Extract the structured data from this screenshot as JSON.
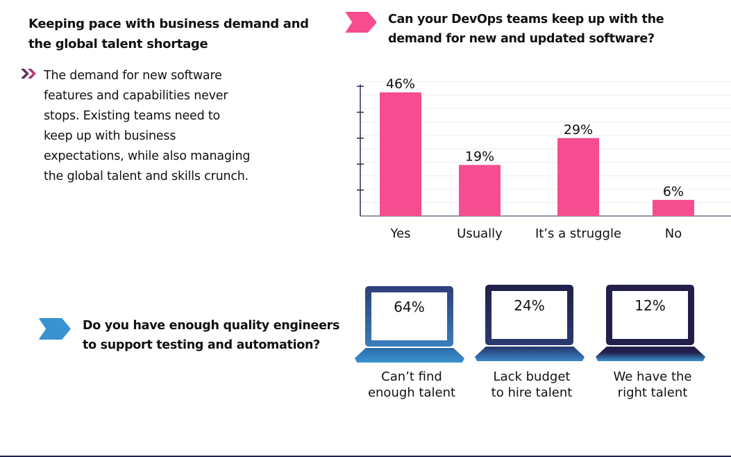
{
  "left": {
    "title": "Keeping pace with business demand and the global talent shortage",
    "body": "The demand for new software features and capabilities never stops. Existing teams need to keep up with business expectations, while also managing the global talent and skills crunch.",
    "bullet_icon": "double-chevron-icon"
  },
  "chart_data": {
    "type": "bar",
    "title": "Can your DevOps teams keep up with the demand for new and updated software?",
    "categories": [
      "Yes",
      "Usually",
      "It’s a struggle",
      "No"
    ],
    "values": [
      46,
      19,
      29,
      6
    ],
    "data_labels": [
      "46%",
      "19%",
      "29%",
      "6%"
    ],
    "ylim": [
      0,
      50
    ],
    "grid": true,
    "color": "#f54d8f"
  },
  "quality": {
    "question": "Do you have enough quality engineers to support testing and automation?",
    "items": [
      {
        "value": "64%",
        "label_1": "Can’t find",
        "label_2": "enough talent"
      },
      {
        "value": "24%",
        "label_1": "Lack budget",
        "label_2": "to hire talent"
      },
      {
        "value": "12%",
        "label_1": "We have the",
        "label_2": "right talent"
      }
    ],
    "colors": {
      "pink": "#f54d8f",
      "blue": "#3a92d0",
      "navy": "#22204a"
    }
  }
}
